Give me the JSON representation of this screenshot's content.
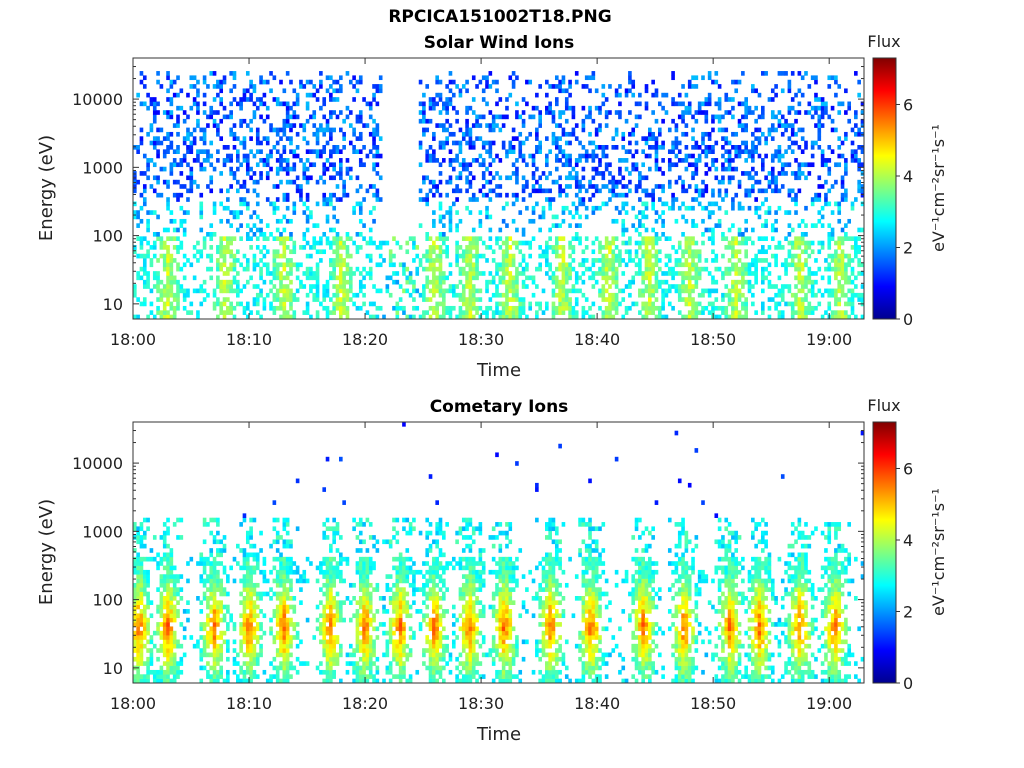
{
  "page": {
    "title": "RPCICA151002T18.PNG"
  },
  "chart_data": [
    {
      "type": "heatmap",
      "title": "Solar Wind Ions",
      "xlabel": "Time",
      "ylabel": "Energy (eV)",
      "x_ticks": [
        "18:00",
        "18:10",
        "18:20",
        "18:30",
        "18:40",
        "18:50",
        "19:00"
      ],
      "x_range_minutes": [
        0,
        63
      ],
      "y_scale": "log",
      "y_ticks": [
        "10",
        "100",
        "1000",
        "10000"
      ],
      "y_range": [
        6,
        40000
      ],
      "colorbar": {
        "label": "Flux",
        "unit_label": "eV⁻¹cm⁻²sr⁻¹s⁻¹",
        "ticks": [
          "0",
          "2",
          "4",
          "6"
        ],
        "range": [
          0,
          7.3
        ],
        "colormap": "jet"
      },
      "features": {
        "dominant_flux": "2-3 scattered over 100 eV - 20 keV",
        "low_energy_bursts_flux": "3-4.5",
        "data_gap_minutes": [
          21.5,
          24.5
        ],
        "burst_times_minutes": [
          3,
          8,
          13,
          18,
          22.5,
          26,
          29,
          32.5,
          37,
          41,
          44.5,
          48,
          52,
          57.5,
          61
        ]
      }
    },
    {
      "type": "heatmap",
      "title": "Cometary Ions",
      "xlabel": "Time",
      "ylabel": "Energy (eV)",
      "x_ticks": [
        "18:00",
        "18:10",
        "18:20",
        "18:30",
        "18:40",
        "18:50",
        "19:00"
      ],
      "x_range_minutes": [
        0,
        63
      ],
      "y_scale": "log",
      "y_ticks": [
        "10",
        "100",
        "1000",
        "10000"
      ],
      "y_range": [
        6,
        40000
      ],
      "colorbar": {
        "label": "Flux",
        "unit_label": "eV⁻¹cm⁻²sr⁻¹s⁻¹",
        "ticks": [
          "0",
          "2",
          "4",
          "6"
        ],
        "range": [
          0,
          7.3
        ],
        "colormap": "jet"
      },
      "features": {
        "peak_flux": 6.5,
        "peak_energy_range_eV": [
          10,
          200
        ],
        "burst_times_minutes": [
          0.5,
          3,
          7,
          10,
          13,
          17,
          20,
          23,
          26,
          29,
          32,
          36,
          39.5,
          44,
          47.5,
          51.5,
          54,
          57.5,
          60.5
        ],
        "sparse_high_energy_counts": "scattered points up to ~20 keV"
      }
    }
  ]
}
